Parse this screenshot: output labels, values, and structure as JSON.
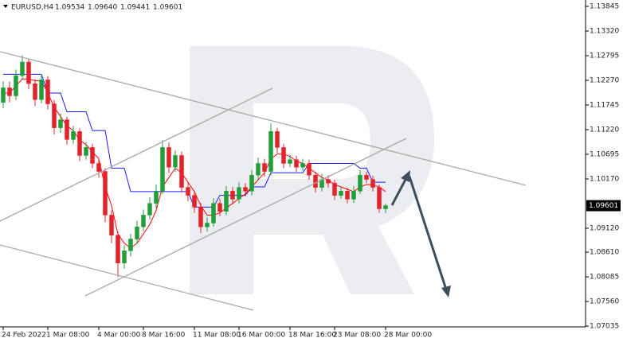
{
  "chart_data": {
    "type": "candlestick",
    "title": "EURUSD,H4",
    "last_bar_labels": [
      "1.09534",
      "1.09640",
      "1.09441",
      "1.09601"
    ],
    "categories": [
      "24 Feb 2022",
      null,
      null,
      null,
      null,
      null,
      null,
      "1 Mar 08:00",
      null,
      null,
      null,
      null,
      null,
      null,
      null,
      "4 Mar 00:00",
      null,
      null,
      null,
      null,
      null,
      null,
      "8 Mar 16:00",
      null,
      null,
      null,
      null,
      null,
      null,
      null,
      "11 Mar 08:00",
      null,
      null,
      null,
      null,
      null,
      null,
      "16 Mar 00:00",
      null,
      null,
      null,
      null,
      null,
      null,
      null,
      "18 Mar 16:00",
      null,
      null,
      null,
      null,
      null,
      null,
      "23 Mar 08:00",
      null,
      null,
      null,
      null,
      null,
      null,
      null,
      "28 Mar 00:00"
    ],
    "open": [
      1.118,
      1.1211,
      1.1194,
      1.1237,
      1.1266,
      1.122,
      1.1186,
      1.1228,
      1.1177,
      1.1126,
      1.1143,
      1.1101,
      1.1118,
      1.1067,
      1.1084,
      1.105,
      1.1033,
      1.094,
      1.0897,
      1.0838,
      1.0864,
      1.0889,
      1.0915,
      1.094,
      1.0965,
      1.0991,
      1.1084,
      1.1042,
      1.1067,
      1.0999,
      1.0982,
      1.0957,
      1.0915,
      1.0923,
      1.0965,
      1.0948,
      1.0991,
      1.0974,
      1.0999,
      1.0991,
      1.1025,
      1.105,
      1.1033,
      1.1118,
      1.1084,
      1.105,
      1.1058,
      1.1042,
      1.105,
      1.1025,
      1.0999,
      1.1016,
      1.1008,
      1.0982,
      1.0991,
      1.0974,
      1.0991,
      1.1025,
      1.1016,
      1.0999,
      1.09534
    ],
    "high": [
      1.1225,
      1.1224,
      1.125,
      1.128,
      1.1272,
      1.123,
      1.124,
      1.1236,
      1.1185,
      1.1156,
      1.115,
      1.113,
      1.1125,
      1.1096,
      1.1092,
      1.1062,
      1.104,
      1.095,
      1.0905,
      1.0876,
      1.09,
      1.0928,
      1.0952,
      1.0978,
      1.1005,
      1.11,
      1.1095,
      1.1078,
      1.1075,
      1.101,
      1.0992,
      1.0966,
      1.0935,
      1.0976,
      1.0975,
      1.1002,
      1.1,
      1.101,
      1.1008,
      1.1036,
      1.1062,
      1.106,
      1.1135,
      1.1126,
      1.1092,
      1.1068,
      1.1066,
      1.106,
      1.1058,
      1.1032,
      1.1028,
      1.1025,
      1.1015,
      1.1,
      1.0998,
      1.1002,
      1.1036,
      1.1032,
      1.1024,
      1.1005,
      1.0964
    ],
    "low": [
      1.1168,
      1.118,
      1.1185,
      1.1228,
      1.1208,
      1.1172,
      1.1178,
      1.1165,
      1.1112,
      1.1115,
      1.109,
      1.1092,
      1.1055,
      1.1058,
      1.104,
      1.102,
      1.0925,
      1.088,
      1.0808,
      1.0826,
      1.0852,
      1.0878,
      1.0905,
      1.093,
      1.0955,
      1.0985,
      1.103,
      1.1032,
      1.0988,
      1.097,
      1.0945,
      1.0902,
      1.0905,
      1.0915,
      1.0938,
      1.094,
      1.0963,
      1.0965,
      1.098,
      1.0982,
      1.1015,
      1.1022,
      1.1025,
      1.1072,
      1.104,
      1.1042,
      1.1032,
      1.1034,
      1.1015,
      1.0988,
      1.099,
      1.0998,
      1.0972,
      1.0975,
      1.0965,
      1.0966,
      1.0985,
      1.1008,
      1.099,
      1.0945,
      1.09441
    ],
    "close": [
      1.1211,
      1.1194,
      1.1237,
      1.1266,
      1.122,
      1.1186,
      1.1228,
      1.1177,
      1.1126,
      1.1143,
      1.1101,
      1.1118,
      1.1067,
      1.1084,
      1.105,
      1.1033,
      1.094,
      1.0897,
      1.0838,
      1.0864,
      1.0889,
      1.0915,
      1.094,
      1.0965,
      1.0991,
      1.1084,
      1.1042,
      1.1067,
      1.0999,
      1.0982,
      1.0957,
      1.0915,
      1.0923,
      1.0965,
      1.0948,
      1.0991,
      1.0974,
      1.0999,
      1.0991,
      1.1025,
      1.105,
      1.1033,
      1.1118,
      1.1084,
      1.105,
      1.1058,
      1.1042,
      1.105,
      1.1025,
      1.0999,
      1.1016,
      1.1008,
      1.0982,
      1.0991,
      1.0974,
      1.0991,
      1.1025,
      1.1016,
      1.0999,
      1.09534,
      1.09601
    ],
    "up_color": "#1f9e3a",
    "down_color": "#e8202a",
    "lines": [
      {
        "color": "#1a1aff",
        "values": [
          1.124,
          1.124,
          1.124,
          1.124,
          1.124,
          1.124,
          1.124,
          1.12,
          1.12,
          1.12,
          1.116,
          1.116,
          1.116,
          1.116,
          1.112,
          1.112,
          1.112,
          1.104,
          1.104,
          1.104,
          1.099,
          1.099,
          1.099,
          1.099,
          1.099,
          1.099,
          1.099,
          1.099,
          1.099,
          1.099,
          1.0957,
          1.0957,
          1.0957,
          1.0957,
          1.0982,
          1.0982,
          1.0982,
          1.0982,
          1.0982,
          1.1,
          1.1,
          1.1,
          1.103,
          1.103,
          1.103,
          1.103,
          1.103,
          1.103,
          1.105,
          1.105,
          1.105,
          1.105,
          1.105,
          1.105,
          1.105,
          1.105,
          1.104,
          1.104,
          1.101,
          1.101,
          1.101
        ]
      },
      {
        "color": "#ff0000",
        "values": [
          1.12,
          1.12,
          1.1215,
          1.123,
          1.123,
          1.1226,
          1.1226,
          1.12,
          1.117,
          1.115,
          1.113,
          1.112,
          1.11,
          1.109,
          1.1075,
          1.106,
          1.1,
          1.096,
          1.09,
          1.088,
          1.087,
          1.088,
          1.09,
          1.092,
          1.095,
          1.1,
          1.102,
          1.104,
          1.103,
          1.101,
          1.099,
          1.096,
          1.094,
          1.094,
          1.0945,
          1.0955,
          1.0965,
          1.0975,
          1.0985,
          1.1,
          1.1015,
          1.103,
          1.106,
          1.107,
          1.107,
          1.1065,
          1.1055,
          1.105,
          1.104,
          1.103,
          1.102,
          1.1015,
          1.1005,
          1.1,
          1.0995,
          1.099,
          1.1,
          1.1005,
          1.1005,
          1.1,
          1.099
        ]
      }
    ],
    "ylim": [
      1.07019,
      1.13981
    ],
    "yticks": [
      1.13845,
      {
        "value": 1.1332,
        "label": "1.13320"
      },
      1.12795,
      {
        "value": 1.1227,
        "label": "1.12270"
      },
      1.11745,
      {
        "value": 1.1122,
        "label": "1.11220"
      },
      1.10695,
      {
        "value": 1.1017,
        "label": "1.10170"
      },
      {
        "value": 1.0912,
        "label": "1.09120"
      },
      {
        "value": 1.0861,
        "label": "1.08610"
      },
      1.08085,
      {
        "value": 1.0756,
        "label": "1.07560"
      },
      1.07035
    ],
    "grid": false
  }
}
